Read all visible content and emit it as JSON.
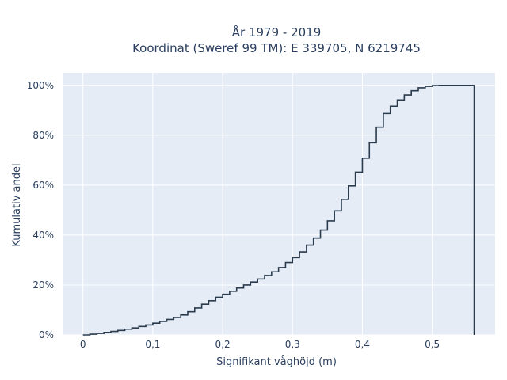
{
  "chart_data": {
    "type": "line",
    "line_shape": "step",
    "title_line1": "År 1979 - 2019",
    "title_line2": "Koordinat (Sweref 99 TM): E 339705, N 6219745",
    "xlabel": "Signifikant våghöjd (m)",
    "ylabel": "Kumulativ andel",
    "xlim": [
      -0.028,
      0.59
    ],
    "ylim": [
      0,
      1.05
    ],
    "x_ticks": [
      0,
      0.1,
      0.2,
      0.3,
      0.4,
      0.5
    ],
    "x_tick_labels": [
      "0",
      "0,1",
      "0,2",
      "0,3",
      "0,4",
      "0,5"
    ],
    "y_ticks": [
      0,
      0.2,
      0.4,
      0.6,
      0.8,
      1.0
    ],
    "y_tick_labels": [
      "0%",
      "20%",
      "40%",
      "60%",
      "80%",
      "100%"
    ],
    "plot_background": "#e5ecf6",
    "grid_color": "#ffffff",
    "line_color": "#2a3b4d",
    "grid": true,
    "series": [
      {
        "x": [
          0,
          0.01,
          0.02,
          0.03,
          0.04,
          0.05,
          0.06,
          0.07,
          0.08,
          0.09,
          0.1,
          0.11,
          0.12,
          0.13,
          0.14,
          0.15,
          0.16,
          0.17,
          0.18,
          0.19,
          0.2,
          0.21,
          0.22,
          0.23,
          0.24,
          0.25,
          0.26,
          0.27,
          0.28,
          0.29,
          0.3,
          0.31,
          0.32,
          0.33,
          0.34,
          0.35,
          0.36,
          0.37,
          0.38,
          0.39,
          0.4,
          0.41,
          0.42,
          0.43,
          0.44,
          0.45,
          0.46,
          0.47,
          0.48,
          0.49,
          0.5,
          0.51,
          0.52,
          0.53,
          0.54,
          0.55,
          0.56
        ],
        "y": [
          0,
          0.003,
          0.006,
          0.01,
          0.014,
          0.018,
          0.023,
          0.028,
          0.034,
          0.04,
          0.047,
          0.054,
          0.062,
          0.07,
          0.08,
          0.093,
          0.108,
          0.123,
          0.137,
          0.151,
          0.163,
          0.175,
          0.188,
          0.2,
          0.212,
          0.224,
          0.238,
          0.253,
          0.27,
          0.29,
          0.31,
          0.333,
          0.36,
          0.388,
          0.42,
          0.457,
          0.497,
          0.543,
          0.597,
          0.652,
          0.708,
          0.77,
          0.832,
          0.887,
          0.916,
          0.941,
          0.961,
          0.978,
          0.99,
          0.996,
          0.999,
          1.0,
          1.0,
          1.0,
          1.0,
          1.0,
          0
        ]
      }
    ]
  }
}
